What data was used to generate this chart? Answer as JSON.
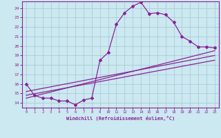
{
  "xlabel": "Windchill (Refroidissement éolien,°C)",
  "bg_color": "#cce8f0",
  "grid_color": "#aaccd8",
  "line_color": "#882299",
  "spine_color": "#882299",
  "xlim": [
    -0.5,
    23.5
  ],
  "ylim": [
    13.5,
    24.7
  ],
  "yticks": [
    14,
    15,
    16,
    17,
    18,
    19,
    20,
    21,
    22,
    23,
    24
  ],
  "xticks": [
    0,
    1,
    2,
    3,
    4,
    5,
    6,
    7,
    8,
    9,
    10,
    11,
    12,
    13,
    14,
    15,
    16,
    17,
    18,
    19,
    20,
    21,
    22,
    23
  ],
  "series1_x": [
    0,
    1,
    2,
    3,
    4,
    5,
    6,
    7,
    8,
    9,
    10,
    11,
    12,
    13,
    14,
    15,
    16,
    17,
    18,
    19,
    20,
    21,
    22,
    23
  ],
  "series1_y": [
    16.0,
    14.8,
    14.5,
    14.5,
    14.2,
    14.2,
    13.8,
    14.3,
    14.5,
    18.5,
    19.3,
    22.3,
    23.5,
    24.2,
    24.6,
    23.4,
    23.5,
    23.3,
    22.5,
    21.0,
    20.5,
    19.9,
    19.9,
    19.8
  ],
  "series2_x": [
    0,
    23
  ],
  "series2_y": [
    15.2,
    19.0
  ],
  "series3_x": [
    0,
    23
  ],
  "series3_y": [
    14.8,
    18.5
  ],
  "series4_x": [
    0,
    23
  ],
  "series4_y": [
    14.5,
    19.5
  ]
}
